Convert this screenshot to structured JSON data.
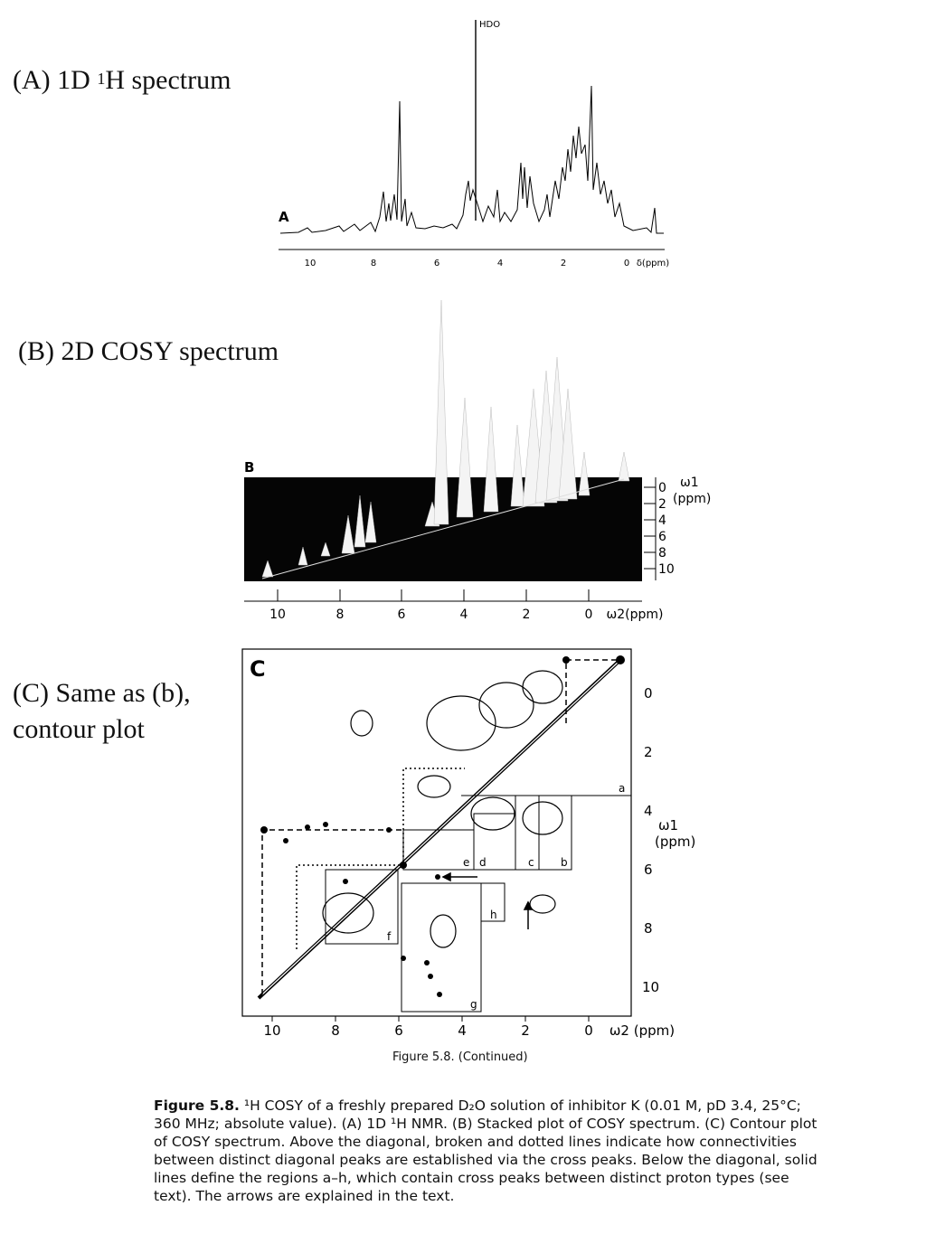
{
  "labels": {
    "a_prefix": "(A) 1D ",
    "a_sup": "1",
    "a_suffix": "H spectrum",
    "b": "(B) 2D COSY spectrum",
    "c_line1": "(C) Same as (b),",
    "c_line2": "contour plot"
  },
  "panel_a": {
    "letter": "A",
    "hdo_label": "HDO",
    "axis_ticks": [
      "10",
      "8",
      "6",
      "4",
      "2",
      "0"
    ],
    "axis_unit": "δ(ppm)"
  },
  "panel_b": {
    "letter": "B",
    "w2_ticks": [
      "10",
      "8",
      "6",
      "4",
      "2",
      "0"
    ],
    "w2_unit": "ω2(ppm)",
    "w1_ticks": [
      "0",
      "2",
      "4",
      "6",
      "8",
      "10"
    ],
    "w1_unit_line1": "ω1",
    "w1_unit_line2": "(ppm)"
  },
  "panel_c": {
    "letter": "C",
    "w2_ticks": [
      "10",
      "8",
      "6",
      "4",
      "2",
      "0"
    ],
    "w2_unit": "ω2 (ppm)",
    "w1_ticks": [
      "0",
      "2",
      "4",
      "6",
      "8",
      "10"
    ],
    "w1_unit_line1": "ω1",
    "w1_unit_line2": "(ppm)",
    "region_letters": [
      "a",
      "b",
      "c",
      "d",
      "e",
      "f",
      "g",
      "h"
    ]
  },
  "figure_continued": "Figure 5.8.  (Continued)",
  "caption": {
    "lead": "Figure 5.8.",
    "text": " ¹H COSY of a freshly prepared D₂O solution of inhibitor K (0.01 M, pD 3.4, 25°C; 360 MHz; absolute value). (A) 1D ¹H NMR. (B) Stacked plot of COSY spectrum. (C) Contour plot of COSY spectrum. Above the diagonal, broken and dotted lines indicate how connectivities between distinct diagonal peaks are established via the cross peaks. Below the diagonal, solid lines define the regions a–h, which contain cross peaks between distinct proton types (see text). The arrows are explained in the text."
  }
}
